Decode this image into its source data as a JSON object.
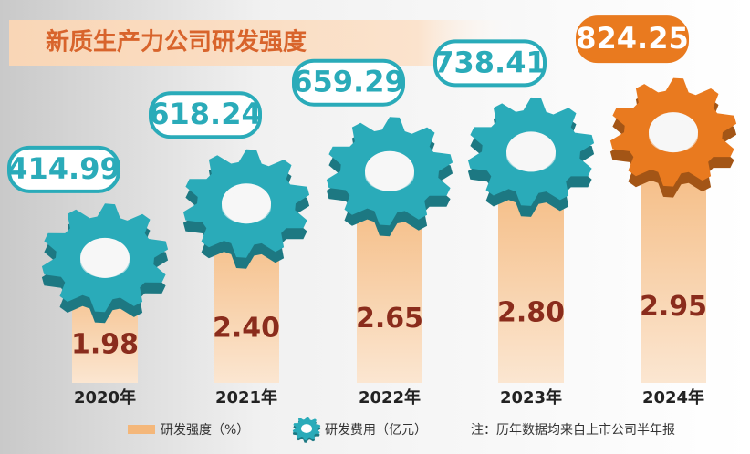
{
  "chart_data": {
    "type": "gear-bar",
    "title": "新质生产力公司研发强度",
    "categories": [
      "2020年",
      "2021年",
      "2022年",
      "2023年",
      "2024年"
    ],
    "series": [
      {
        "name": "研发强度（%）",
        "color": "#f4b77a",
        "values": [
          1.98,
          2.4,
          2.65,
          2.8,
          2.95
        ],
        "value_labels": [
          "1.98",
          "2.40",
          "2.65",
          "2.80",
          "2.95"
        ],
        "label_color": "#8a2c1c"
      },
      {
        "name": "研发费用（亿元）",
        "color": "#2aabb9",
        "colors": [
          "#2aabb9",
          "#2aabb9",
          "#2aabb9",
          "#2aabb9",
          "#e97a1f"
        ],
        "values": [
          414.99,
          618.24,
          659.29,
          738.41,
          824.25
        ]
      }
    ],
    "note": "注：历年数据均来自上市公司半年报"
  }
}
